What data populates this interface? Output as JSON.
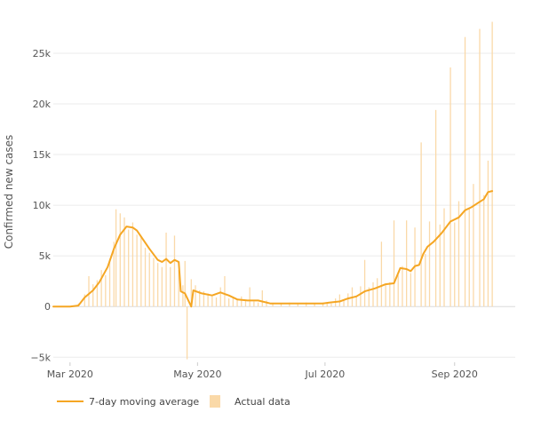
{
  "chart_data": {
    "type": "line",
    "title": "",
    "xlabel": "",
    "ylabel": "Confirmed new cases",
    "ylim": [
      -5500,
      28500
    ],
    "xlim": [
      "2020-02-22",
      "2020-09-30"
    ],
    "yticks": [
      {
        "value": -5000,
        "label": "−5k"
      },
      {
        "value": 0,
        "label": "0"
      },
      {
        "value": 5000,
        "label": "5k"
      },
      {
        "value": 10000,
        "label": "10k"
      },
      {
        "value": 15000,
        "label": "15k"
      },
      {
        "value": 20000,
        "label": "20k"
      },
      {
        "value": 25000,
        "label": "25k"
      }
    ],
    "xticks": [
      {
        "date": "2020-03-01",
        "label": "Mar 2020"
      },
      {
        "date": "2020-05-01",
        "label": "May 2020"
      },
      {
        "date": "2020-07-01",
        "label": "Jul 2020"
      },
      {
        "date": "2020-09-01",
        "label": "Sep 2020"
      }
    ],
    "grid": true,
    "legend_position": "bottom-left",
    "series": [
      {
        "name": "7-day moving average",
        "kind": "line",
        "color": "#f5a623",
        "points": [
          [
            "2020-02-22",
            0
          ],
          [
            "2020-03-01",
            0
          ],
          [
            "2020-03-05",
            100
          ],
          [
            "2020-03-08",
            900
          ],
          [
            "2020-03-12",
            1600
          ],
          [
            "2020-03-15",
            2400
          ],
          [
            "2020-03-19",
            3900
          ],
          [
            "2020-03-22",
            5700
          ],
          [
            "2020-03-25",
            7100
          ],
          [
            "2020-03-28",
            7900
          ],
          [
            "2020-03-31",
            7800
          ],
          [
            "2020-04-02",
            7500
          ],
          [
            "2020-04-05",
            6600
          ],
          [
            "2020-04-08",
            5700
          ],
          [
            "2020-04-12",
            4600
          ],
          [
            "2020-04-14",
            4400
          ],
          [
            "2020-04-16",
            4700
          ],
          [
            "2020-04-18",
            4300
          ],
          [
            "2020-04-20",
            4600
          ],
          [
            "2020-04-22",
            4400
          ],
          [
            "2020-04-23",
            1500
          ],
          [
            "2020-04-25",
            1300
          ],
          [
            "2020-04-28",
            0
          ],
          [
            "2020-04-29",
            1600
          ],
          [
            "2020-05-03",
            1300
          ],
          [
            "2020-05-08",
            1100
          ],
          [
            "2020-05-12",
            1400
          ],
          [
            "2020-05-16",
            1100
          ],
          [
            "2020-05-20",
            700
          ],
          [
            "2020-05-25",
            600
          ],
          [
            "2020-05-30",
            600
          ],
          [
            "2020-06-05",
            300
          ],
          [
            "2020-06-10",
            300
          ],
          [
            "2020-06-20",
            300
          ],
          [
            "2020-06-30",
            300
          ],
          [
            "2020-07-03",
            400
          ],
          [
            "2020-07-08",
            500
          ],
          [
            "2020-07-12",
            800
          ],
          [
            "2020-07-16",
            1000
          ],
          [
            "2020-07-20",
            1500
          ],
          [
            "2020-07-25",
            1800
          ],
          [
            "2020-07-30",
            2200
          ],
          [
            "2020-08-03",
            2300
          ],
          [
            "2020-08-06",
            3800
          ],
          [
            "2020-08-09",
            3700
          ],
          [
            "2020-08-11",
            3500
          ],
          [
            "2020-08-13",
            4000
          ],
          [
            "2020-08-15",
            4100
          ],
          [
            "2020-08-17",
            5200
          ],
          [
            "2020-08-19",
            5900
          ],
          [
            "2020-08-22",
            6400
          ],
          [
            "2020-08-26",
            7300
          ],
          [
            "2020-08-30",
            8400
          ],
          [
            "2020-09-03",
            8800
          ],
          [
            "2020-09-06",
            9500
          ],
          [
            "2020-09-09",
            9800
          ],
          [
            "2020-09-12",
            10200
          ],
          [
            "2020-09-15",
            10600
          ],
          [
            "2020-09-17",
            11300
          ],
          [
            "2020-09-19",
            11400
          ]
        ]
      },
      {
        "name": "Actual data",
        "kind": "bar",
        "color": "#fad9a8",
        "points": [
          [
            "2020-03-02",
            100
          ],
          [
            "2020-03-05",
            300
          ],
          [
            "2020-03-08",
            1200
          ],
          [
            "2020-03-10",
            3000
          ],
          [
            "2020-03-12",
            2200
          ],
          [
            "2020-03-14",
            2600
          ],
          [
            "2020-03-16",
            3600
          ],
          [
            "2020-03-18",
            3100
          ],
          [
            "2020-03-20",
            4700
          ],
          [
            "2020-03-22",
            6400
          ],
          [
            "2020-03-23",
            9600
          ],
          [
            "2020-03-25",
            9200
          ],
          [
            "2020-03-27",
            8800
          ],
          [
            "2020-03-29",
            7600
          ],
          [
            "2020-03-31",
            8300
          ],
          [
            "2020-04-02",
            7100
          ],
          [
            "2020-04-04",
            6900
          ],
          [
            "2020-04-06",
            5800
          ],
          [
            "2020-04-08",
            5300
          ],
          [
            "2020-04-10",
            4800
          ],
          [
            "2020-04-12",
            4300
          ],
          [
            "2020-04-14",
            3900
          ],
          [
            "2020-04-16",
            7300
          ],
          [
            "2020-04-18",
            3900
          ],
          [
            "2020-04-20",
            7000
          ],
          [
            "2020-04-22",
            3600
          ],
          [
            "2020-04-24",
            2100
          ],
          [
            "2020-04-25",
            4500
          ],
          [
            "2020-04-26",
            -5200
          ],
          [
            "2020-04-28",
            2700
          ],
          [
            "2020-04-30",
            2100
          ],
          [
            "2020-05-02",
            1600
          ],
          [
            "2020-05-04",
            1500
          ],
          [
            "2020-05-06",
            1300
          ],
          [
            "2020-05-08",
            1000
          ],
          [
            "2020-05-10",
            900
          ],
          [
            "2020-05-12",
            1900
          ],
          [
            "2020-05-14",
            3000
          ],
          [
            "2020-05-16",
            800
          ],
          [
            "2020-05-18",
            900
          ],
          [
            "2020-05-20",
            700
          ],
          [
            "2020-05-22",
            1000
          ],
          [
            "2020-05-24",
            600
          ],
          [
            "2020-05-26",
            1900
          ],
          [
            "2020-05-28",
            500
          ],
          [
            "2020-05-30",
            400
          ],
          [
            "2020-06-01",
            1600
          ],
          [
            "2020-06-03",
            600
          ],
          [
            "2020-06-06",
            300
          ],
          [
            "2020-06-10",
            300
          ],
          [
            "2020-06-14",
            400
          ],
          [
            "2020-06-18",
            300
          ],
          [
            "2020-06-22",
            400
          ],
          [
            "2020-06-26",
            300
          ],
          [
            "2020-06-30",
            400
          ],
          [
            "2020-07-02",
            400
          ],
          [
            "2020-07-04",
            300
          ],
          [
            "2020-07-06",
            800
          ],
          [
            "2020-07-08",
            1200
          ],
          [
            "2020-07-10",
            700
          ],
          [
            "2020-07-12",
            1300
          ],
          [
            "2020-07-14",
            1900
          ],
          [
            "2020-07-16",
            1100
          ],
          [
            "2020-07-18",
            2000
          ],
          [
            "2020-07-20",
            4600
          ],
          [
            "2020-07-22",
            1900
          ],
          [
            "2020-07-24",
            2400
          ],
          [
            "2020-07-26",
            2800
          ],
          [
            "2020-07-28",
            6400
          ],
          [
            "2020-07-30",
            2200
          ],
          [
            "2020-08-01",
            2400
          ],
          [
            "2020-08-03",
            8500
          ],
          [
            "2020-08-05",
            3100
          ],
          [
            "2020-08-07",
            4000
          ],
          [
            "2020-08-09",
            8500
          ],
          [
            "2020-08-11",
            3300
          ],
          [
            "2020-08-13",
            7800
          ],
          [
            "2020-08-16",
            16200
          ],
          [
            "2020-08-18",
            5200
          ],
          [
            "2020-08-20",
            8400
          ],
          [
            "2020-08-23",
            19400
          ],
          [
            "2020-08-25",
            8100
          ],
          [
            "2020-08-27",
            9700
          ],
          [
            "2020-08-30",
            23600
          ],
          [
            "2020-09-01",
            8300
          ],
          [
            "2020-09-03",
            10400
          ],
          [
            "2020-09-06",
            26600
          ],
          [
            "2020-09-08",
            9700
          ],
          [
            "2020-09-10",
            12100
          ],
          [
            "2020-09-13",
            27400
          ],
          [
            "2020-09-15",
            11000
          ],
          [
            "2020-09-17",
            14400
          ],
          [
            "2020-09-19",
            28100
          ]
        ]
      }
    ]
  }
}
